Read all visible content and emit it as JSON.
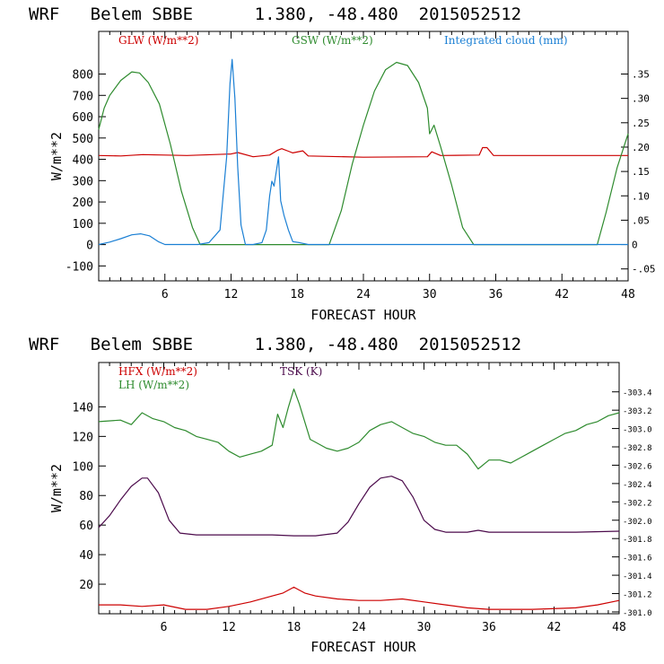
{
  "chart_data": [
    {
      "type": "line",
      "title": "WRF   Belem SBBE      1.380, -48.480  2015052512",
      "xlabel": "FORECAST HOUR",
      "ylabel": "W/m**2",
      "xlim": [
        0,
        48
      ],
      "ylim": [
        -170,
        1000
      ],
      "y2lim": [
        -0.0745,
        0.4375
      ],
      "x_ticks": [
        "6",
        "12",
        "18",
        "24",
        "30",
        "36",
        "42",
        "48"
      ],
      "y_ticks": [
        "800",
        "700",
        "600",
        "500",
        "400",
        "300",
        "200",
        "100",
        "0",
        "-100"
      ],
      "y2_ticks": [
        ".35",
        ".30",
        ".25",
        ".20",
        ".15",
        ".10",
        ".05",
        "0",
        "-.05"
      ],
      "series": [
        {
          "name": "GLW (W/m**2)",
          "axis": "left",
          "color": "#cc0000",
          "x": [
            0,
            2,
            4,
            8,
            12,
            12.6,
            14,
            15.5,
            16.2,
            16.6,
            17.2,
            17.6,
            18.5,
            19,
            24,
            29.8,
            30.2,
            31,
            34.5,
            34.8,
            35.2,
            35.8,
            42,
            48
          ],
          "y": [
            418,
            416,
            422,
            418,
            425,
            432,
            412,
            420,
            442,
            450,
            438,
            430,
            440,
            416,
            410,
            412,
            435,
            418,
            420,
            455,
            455,
            418,
            418,
            418
          ]
        },
        {
          "name": "GSW (W/m**2)",
          "axis": "left",
          "color": "#2e8b2e",
          "x": [
            0,
            0.5,
            1,
            2,
            3,
            3.7,
            4.5,
            5.5,
            6.5,
            7.5,
            8.5,
            9.2,
            20.9,
            22,
            23,
            24,
            25,
            26,
            27,
            28,
            29,
            29.8,
            30,
            30.4,
            31,
            32,
            33,
            34,
            45.2,
            46,
            47,
            48
          ],
          "y": [
            540,
            640,
            700,
            770,
            810,
            805,
            760,
            660,
            470,
            250,
            80,
            0,
            0,
            160,
            380,
            560,
            720,
            820,
            855,
            840,
            760,
            640,
            520,
            560,
            460,
            280,
            80,
            0,
            0,
            150,
            360,
            520
          ]
        },
        {
          "name": "Integrated cloud (mm)",
          "axis": "right",
          "color": "#1a7fd4",
          "x": [
            0,
            1,
            2,
            3,
            3.8,
            4.6,
            5.4,
            6,
            9,
            10,
            11,
            11.6,
            11.9,
            12.1,
            12.35,
            12.6,
            12.9,
            13.3,
            14,
            14.8,
            15.2,
            15.5,
            15.7,
            15.9,
            16.1,
            16.3,
            16.5,
            16.8,
            17.2,
            17.6,
            18.2,
            19,
            48
          ],
          "y": [
            0,
            0.005,
            0.012,
            0.02,
            0.022,
            0.018,
            0.006,
            0,
            0,
            0.004,
            0.03,
            0.18,
            0.33,
            0.38,
            0.3,
            0.16,
            0.04,
            0,
            0,
            0.004,
            0.03,
            0.1,
            0.13,
            0.12,
            0.15,
            0.18,
            0.09,
            0.06,
            0.03,
            0.006,
            0.004,
            0,
            0
          ]
        }
      ],
      "legend": [
        "GLW (W/m**2)",
        "GSW (W/m**2)",
        "Integrated cloud (mm)"
      ]
    },
    {
      "type": "line",
      "title": "WRF   Belem SBBE      1.380, -48.480  2015052512",
      "xlabel": "FORECAST HOUR",
      "ylabel": "W/m**2",
      "xlim": [
        0,
        48
      ],
      "ylim": [
        0,
        170
      ],
      "y2lim": [
        300.98,
        303.72
      ],
      "x_ticks": [
        "6",
        "12",
        "18",
        "24",
        "30",
        "36",
        "42",
        "48"
      ],
      "y_ticks": [
        "140",
        "120",
        "100",
        "80",
        "60",
        "40",
        "20"
      ],
      "y2_ticks": [
        "303.4",
        "303.2",
        "303.0",
        "302.8",
        "302.6",
        "302.4",
        "302.2",
        "302.0",
        "301.8",
        "301.6",
        "301.4",
        "301.2",
        "301.0"
      ],
      "series": [
        {
          "name": "HFX (W/m**2)",
          "axis": "left",
          "color": "#cc0000",
          "x": [
            0,
            2,
            4,
            6,
            8,
            10,
            12,
            14,
            16,
            17,
            18,
            18.5,
            19,
            20,
            22,
            24,
            26,
            28,
            30,
            32,
            34,
            36,
            40,
            44,
            46,
            48
          ],
          "y": [
            6,
            6,
            5,
            6,
            3,
            3,
            5,
            8,
            12,
            14,
            18,
            16,
            14,
            12,
            10,
            9,
            9,
            10,
            8,
            6,
            4,
            3,
            3,
            4,
            6,
            9
          ]
        },
        {
          "name": "LH (W/m**2)",
          "axis": "left",
          "color": "#2e8b2e",
          "x": [
            0,
            2,
            3,
            4,
            5,
            6,
            7,
            8,
            9,
            10,
            11,
            12,
            13,
            14,
            15,
            16,
            16.5,
            17,
            17.5,
            18,
            18.5,
            19,
            19.5,
            20,
            21,
            22,
            23,
            24,
            25,
            26,
            27,
            28,
            29,
            30,
            31,
            32,
            33,
            34,
            35,
            36,
            37,
            38,
            39,
            40,
            41,
            42,
            43,
            44,
            45,
            46,
            47,
            48
          ],
          "y": [
            130,
            131,
            128,
            136,
            132,
            130,
            126,
            124,
            120,
            118,
            116,
            110,
            106,
            108,
            110,
            114,
            135,
            126,
            140,
            152,
            142,
            130,
            118,
            116,
            112,
            110,
            112,
            116,
            124,
            128,
            130,
            126,
            122,
            120,
            116,
            114,
            114,
            108,
            98,
            104,
            104,
            102,
            106,
            110,
            114,
            118,
            122,
            124,
            128,
            130,
            134,
            136
          ]
        },
        {
          "name": "TSK (K)",
          "axis": "right",
          "color": "#4b0a4b",
          "x": [
            0,
            1,
            2,
            3,
            4,
            4.5,
            5.5,
            6.5,
            7.5,
            9,
            12,
            16,
            18,
            20,
            22,
            23,
            24,
            25,
            26,
            27,
            28,
            29,
            30,
            31,
            32,
            33,
            34,
            35,
            36,
            40,
            44,
            48
          ],
          "y": [
            301.92,
            302.05,
            302.22,
            302.37,
            302.46,
            302.46,
            302.3,
            302.0,
            301.86,
            301.84,
            301.84,
            301.84,
            301.83,
            301.83,
            301.86,
            301.98,
            302.18,
            302.36,
            302.46,
            302.48,
            302.43,
            302.25,
            302.0,
            301.9,
            301.87,
            301.87,
            301.87,
            301.89,
            301.87,
            301.87,
            301.87,
            301.88
          ]
        }
      ],
      "legend": [
        "HFX (W/m**2)",
        "LH (W/m**2)",
        "TSK (K)"
      ]
    }
  ]
}
